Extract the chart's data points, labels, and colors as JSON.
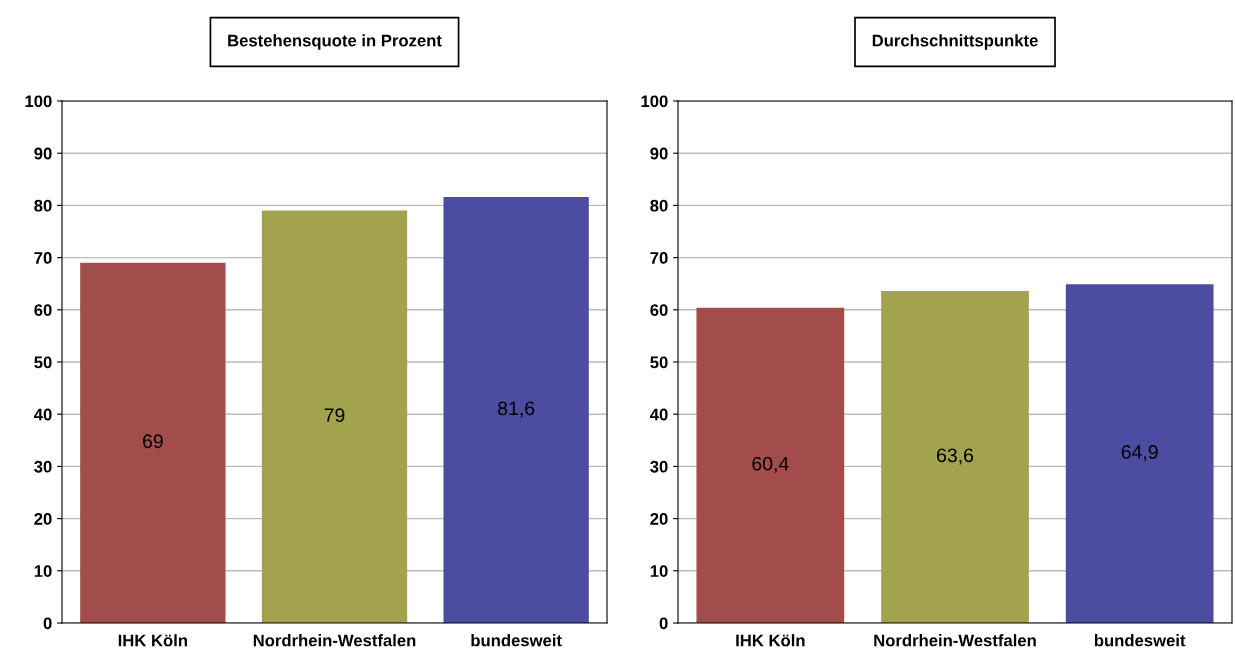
{
  "chart_data": [
    {
      "type": "bar",
      "title": "Bestehensquote in Prozent",
      "categories": [
        "IHK Köln",
        "Nordrhein-Westfalen",
        "bundesweit"
      ],
      "values": [
        69,
        79,
        81.6
      ],
      "colors": [
        "#a34c4c",
        "#a3a34e",
        "#4c4ca3"
      ],
      "value_labels": [
        "69",
        "79",
        "81,6"
      ],
      "ylim": [
        0,
        100
      ],
      "yticks": [
        0,
        10,
        20,
        30,
        40,
        50,
        60,
        70,
        80,
        90,
        100
      ],
      "grid": "y"
    },
    {
      "type": "bar",
      "title": "Durchschnittspunkte",
      "categories": [
        "IHK Köln",
        "Nordrhein-Westfalen",
        "bundesweit"
      ],
      "values": [
        60.4,
        63.6,
        64.9
      ],
      "colors": [
        "#a34c4c",
        "#a3a34e",
        "#4c4ca3"
      ],
      "value_labels": [
        "60,4",
        "63,6",
        "64,9"
      ],
      "ylim": [
        0,
        100
      ],
      "yticks": [
        0,
        10,
        20,
        30,
        40,
        50,
        60,
        70,
        80,
        90,
        100
      ],
      "grid": "y"
    }
  ]
}
